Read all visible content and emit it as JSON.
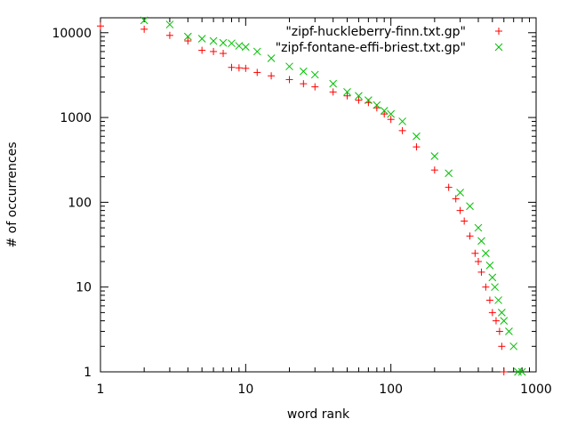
{
  "chart_data": {
    "type": "scatter",
    "title": "",
    "xlabel": "word rank",
    "ylabel": "# of occurrences",
    "xscale": "log",
    "yscale": "log",
    "xlim": [
      1,
      1000
    ],
    "ylim": [
      1,
      15000
    ],
    "grid": false,
    "legend_position": "top-right",
    "x_ticks": [
      {
        "value": 1,
        "label": "1"
      },
      {
        "value": 10,
        "label": "10"
      },
      {
        "value": 100,
        "label": "100"
      },
      {
        "value": 1000,
        "label": "1000"
      }
    ],
    "y_ticks": [
      {
        "value": 1,
        "label": "1"
      },
      {
        "value": 10,
        "label": "10"
      },
      {
        "value": 100,
        "label": "100"
      },
      {
        "value": 1000,
        "label": "1000"
      },
      {
        "value": 10000,
        "label": "10000"
      }
    ],
    "series": [
      {
        "name": "\"zipf-huckleberry-finn.txt.gp\"",
        "marker": "plus",
        "color": "#ff0000",
        "x": [
          1,
          2,
          3,
          4,
          5,
          6,
          7,
          8,
          9,
          10,
          12,
          15,
          20,
          25,
          30,
          40,
          50,
          60,
          70,
          80,
          90,
          100,
          120,
          150,
          200,
          250,
          280,
          300,
          320,
          350,
          380,
          400,
          420,
          450,
          480,
          500,
          530,
          560,
          580,
          600
        ],
        "y": [
          12000,
          11000,
          9300,
          8000,
          6200,
          6000,
          5700,
          3900,
          3850,
          3800,
          3400,
          3100,
          2800,
          2500,
          2300,
          2000,
          1800,
          1600,
          1500,
          1300,
          1100,
          950,
          700,
          450,
          240,
          150,
          110,
          80,
          60,
          40,
          25,
          20,
          15,
          10,
          7,
          5,
          4,
          3,
          2,
          1
        ]
      },
      {
        "name": "\"zipf-fontane-effi-briest.txt.gp\"",
        "marker": "cross",
        "color": "#00c000",
        "x": [
          2,
          3,
          4,
          5,
          6,
          7,
          8,
          9,
          10,
          12,
          15,
          20,
          25,
          30,
          40,
          50,
          60,
          70,
          80,
          90,
          100,
          120,
          150,
          200,
          250,
          300,
          350,
          400,
          420,
          450,
          480,
          500,
          520,
          550,
          580,
          600,
          650,
          700,
          750,
          800
        ],
        "y": [
          14000,
          12500,
          9000,
          8500,
          8000,
          7600,
          7500,
          7000,
          6800,
          6000,
          5000,
          4000,
          3500,
          3200,
          2500,
          2000,
          1800,
          1600,
          1400,
          1200,
          1100,
          900,
          600,
          350,
          220,
          130,
          90,
          50,
          35,
          25,
          18,
          13,
          10,
          7,
          5,
          4,
          3,
          2,
          1,
          1
        ]
      }
    ]
  }
}
